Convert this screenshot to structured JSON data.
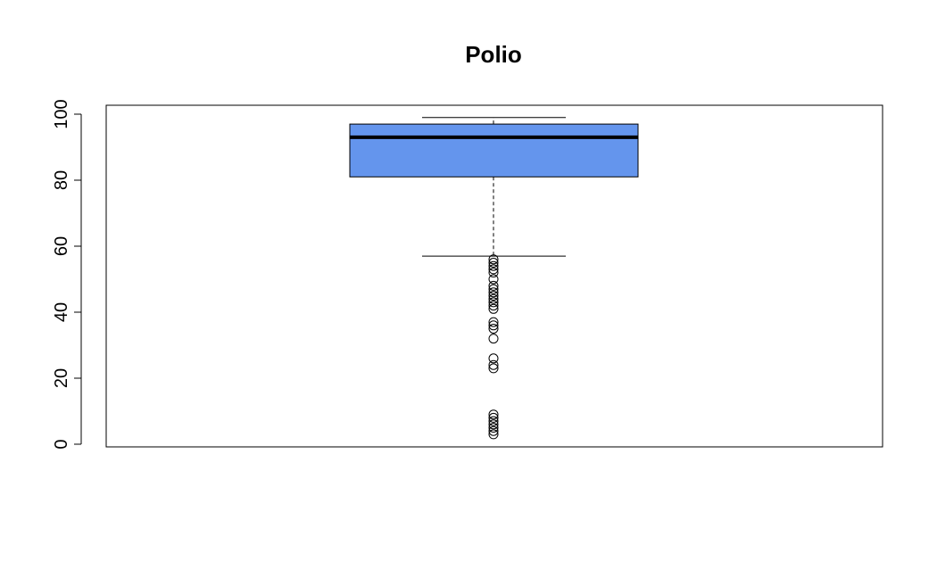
{
  "chart_data": {
    "type": "boxplot",
    "title": "Polio",
    "xlabel": "",
    "ylabel": "",
    "ylim": [
      0,
      100
    ],
    "yticks": [
      "0",
      "20",
      "40",
      "60",
      "80",
      "100"
    ],
    "grid": false,
    "legend": "none",
    "box_color": "#6495ED",
    "box": {
      "min_whisker": 57,
      "q1": 81,
      "median": 93,
      "q3": 97,
      "max_whisker": 99
    },
    "outliers": [
      56,
      55,
      54,
      53,
      52,
      50,
      48,
      47,
      46,
      45,
      44,
      43,
      42,
      41,
      37,
      36,
      35,
      32,
      26,
      24,
      23,
      9,
      8,
      7,
      6,
      5,
      4,
      3
    ]
  }
}
